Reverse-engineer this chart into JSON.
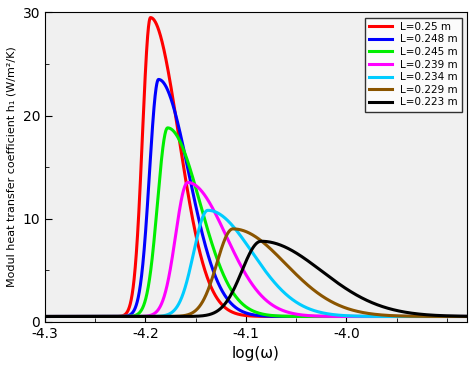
{
  "series": [
    {
      "L": 0.25,
      "color": "#ff0000",
      "peak_x": -4.195,
      "peak_y": 29.5,
      "sigma_l": 0.008,
      "sigma_r": 0.028,
      "label": "L=0.25 m"
    },
    {
      "L": 0.248,
      "color": "#0000ff",
      "peak_x": -4.187,
      "peak_y": 23.5,
      "sigma_l": 0.009,
      "sigma_r": 0.03,
      "label": "L=0.248 m"
    },
    {
      "L": 0.245,
      "color": "#00ee00",
      "peak_x": -4.178,
      "peak_y": 18.8,
      "sigma_l": 0.01,
      "sigma_r": 0.032,
      "label": "L=0.245 m"
    },
    {
      "L": 0.239,
      "color": "#ff00ff",
      "peak_x": -4.158,
      "peak_y": 13.5,
      "sigma_l": 0.012,
      "sigma_r": 0.038,
      "label": "L=0.239 m"
    },
    {
      "L": 0.234,
      "color": "#00ccff",
      "peak_x": -4.138,
      "peak_y": 10.8,
      "sigma_l": 0.014,
      "sigma_r": 0.044,
      "label": "L=0.234 m"
    },
    {
      "L": 0.229,
      "color": "#8B5500",
      "peak_x": -4.113,
      "peak_y": 9.0,
      "sigma_l": 0.016,
      "sigma_r": 0.052,
      "label": "L=0.229 m"
    },
    {
      "L": 0.223,
      "color": "#000000",
      "peak_x": -4.085,
      "peak_y": 7.8,
      "sigma_l": 0.019,
      "sigma_r": 0.06,
      "label": "L=0.223 m"
    }
  ],
  "xlim": [
    -4.3,
    -3.88
  ],
  "ylim": [
    0,
    30
  ],
  "xticks": [
    -4.3,
    -4.2,
    -4.1,
    -4.0
  ],
  "yticks": [
    0,
    10,
    20,
    30
  ],
  "xlabel": "log(ω)",
  "ylabel": "Modul heat transfer coefficient h₁ (W/m²/K)",
  "baseline": 0.5,
  "lw": 2.2,
  "figsize": [
    4.74,
    3.68
  ],
  "dpi": 100
}
